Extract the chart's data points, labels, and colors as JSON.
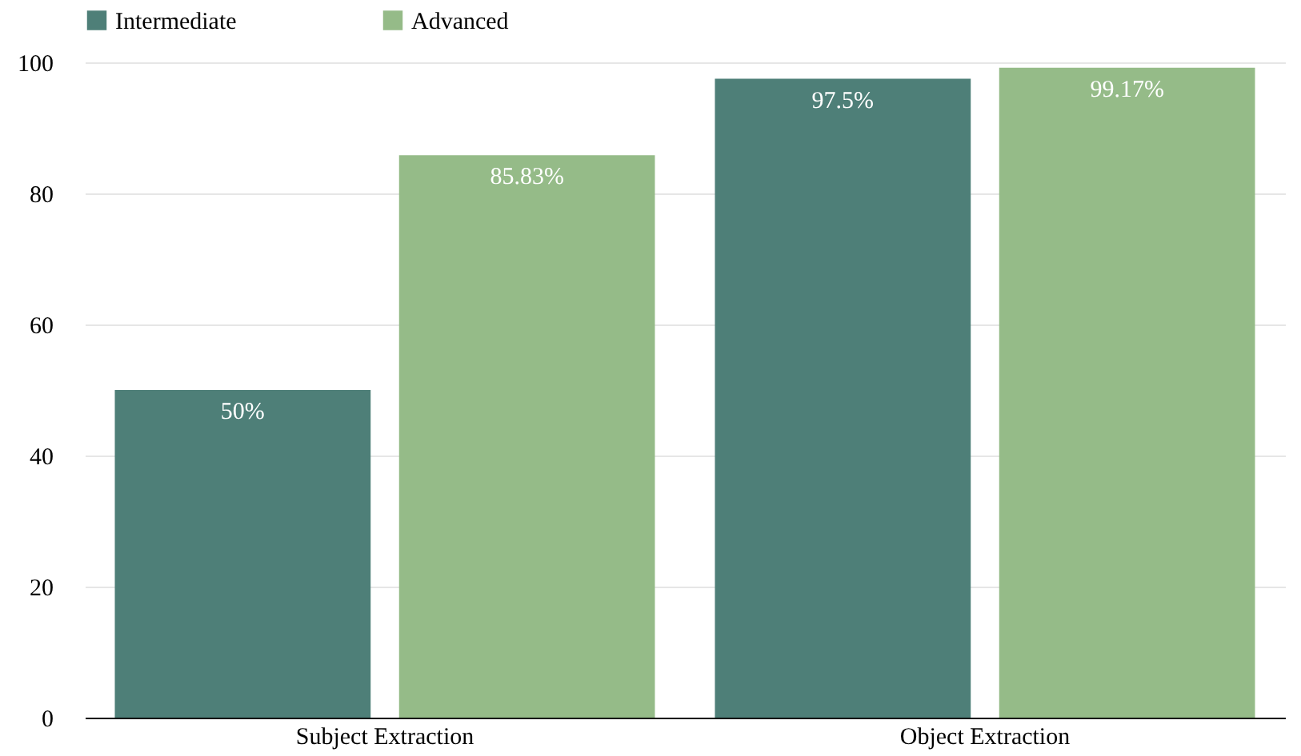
{
  "chart_data": {
    "type": "bar",
    "categories": [
      "Subject Extraction",
      "Object Extraction"
    ],
    "series": [
      {
        "name": "Intermediate",
        "color": "#4e7f78",
        "values": [
          50,
          97.5
        ],
        "value_labels": [
          "50%",
          "97.5%"
        ]
      },
      {
        "name": "Advanced",
        "color": "#95bb88",
        "values": [
          85.83,
          99.17
        ],
        "value_labels": [
          "85.83%",
          "99.17%"
        ]
      }
    ],
    "ylim": [
      0,
      100
    ],
    "yticks": [
      0,
      20,
      40,
      60,
      80,
      100
    ],
    "grid": "y",
    "legend": "top"
  }
}
